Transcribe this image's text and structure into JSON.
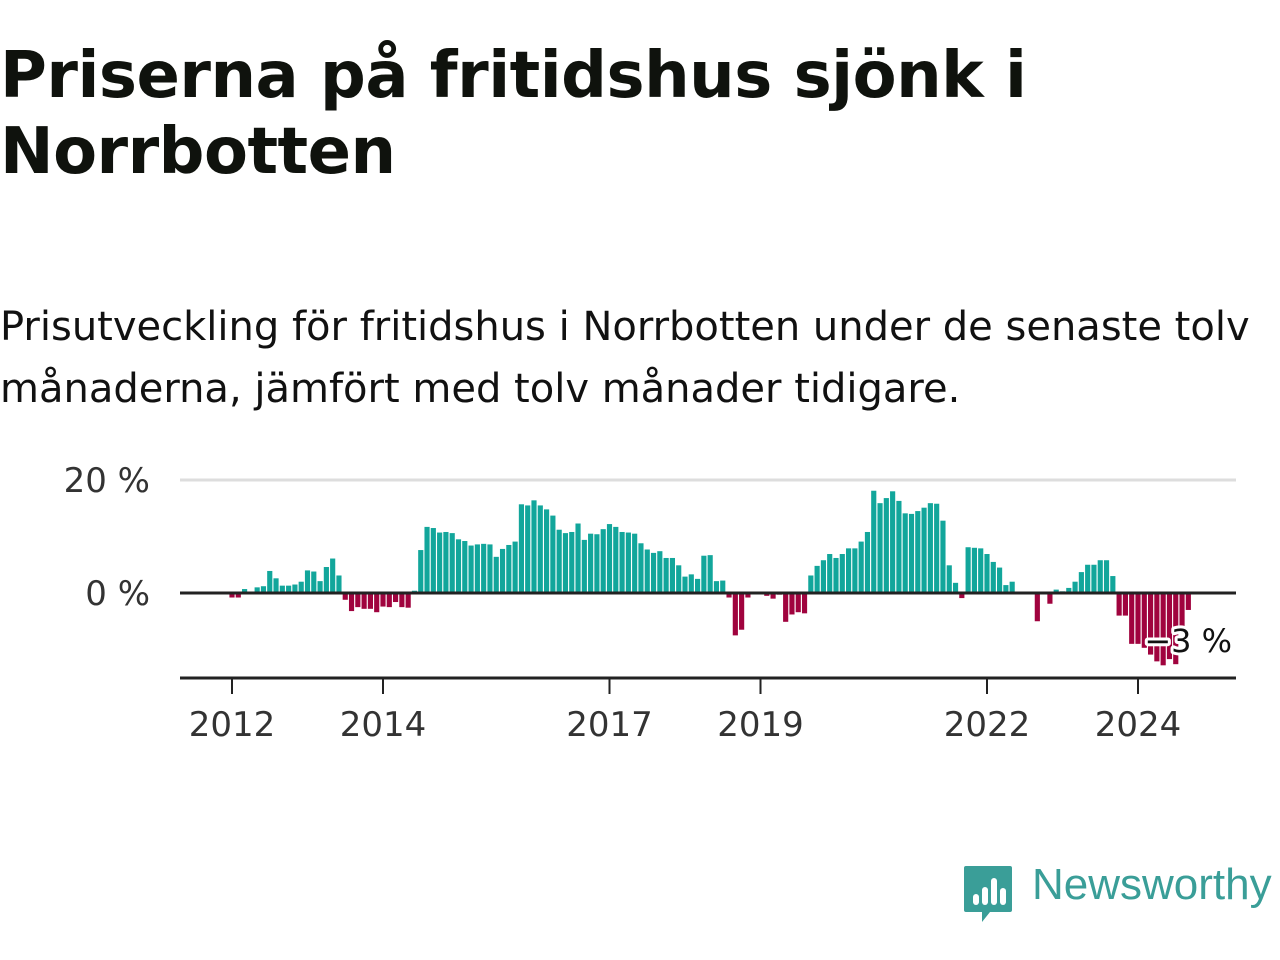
{
  "title": "Priserna på fritidshus sjönk i Norrbotten",
  "subtitle": "Prisutveckling för fritidshus i Norrbotten under de senaste tolv månaderna, jämfört med tolv månader tidigare.",
  "brand": {
    "name": "Newsworthy",
    "icon": "bar-chart-logo-icon",
    "color": "#3a9e98"
  },
  "colors": {
    "positive": "#12a69b",
    "negative": "#a0033e",
    "axis": "#222222",
    "grid": "#dddddd"
  },
  "chart_data": {
    "type": "bar",
    "title": "",
    "xlabel": "",
    "ylabel": "",
    "ylim": [
      -15,
      22
    ],
    "yticks": [
      0,
      20
    ],
    "ytick_labels": [
      "0 %",
      "20 %"
    ],
    "x_start": {
      "year": 2012,
      "month": 1
    },
    "x_end": {
      "year": 2025,
      "month": 12
    },
    "xticks": [
      2012,
      2014,
      2017,
      2019,
      2022,
      2024
    ],
    "last_value_label": "−3 %",
    "values": [
      -0.8,
      -0.8,
      0.7,
      0,
      1,
      1.2,
      3.9,
      2.6,
      1.3,
      1.3,
      1.5,
      2,
      4,
      3.8,
      2.1,
      4.6,
      6.1,
      3.1,
      -1.2,
      -3.2,
      -2.5,
      -2.8,
      -2.8,
      -3.4,
      -2.4,
      -2.5,
      -1.6,
      -2.5,
      -2.6,
      0.4,
      7.6,
      11.7,
      11.5,
      10.7,
      10.8,
      10.6,
      9.5,
      9.2,
      8.4,
      8.6,
      8.7,
      8.6,
      6.4,
      7.8,
      8.5,
      9.1,
      15.7,
      15.5,
      16.4,
      15.5,
      14.8,
      13.7,
      11.2,
      10.6,
      10.8,
      12.3,
      9.4,
      10.5,
      10.4,
      11.3,
      12.2,
      11.7,
      10.8,
      10.7,
      10.5,
      8.8,
      7.7,
      7.1,
      7.4,
      6.2,
      6.2,
      4.9,
      2.9,
      3.3,
      2.5,
      6.6,
      6.7,
      2.1,
      2.2,
      -0.8,
      -7.5,
      -6.5,
      -0.8,
      0,
      0,
      -0.5,
      -1,
      -0.3,
      -5.1,
      -3.8,
      -3.4,
      -3.6,
      3.1,
      4.8,
      5.8,
      6.9,
      6.2,
      6.9,
      7.9,
      7.9,
      9.1,
      10.8,
      18.1,
      15.9,
      16.8,
      18,
      16.3,
      14.1,
      14,
      14.5,
      15.1,
      15.9,
      15.8,
      12.8,
      4.9,
      1.8,
      -0.9,
      8.1,
      8,
      7.9,
      6.9,
      5.5,
      4.5,
      1.4,
      2,
      0,
      0,
      0,
      -5,
      0,
      -1.9,
      0.6,
      0.3,
      0.9,
      2,
      3.7,
      5,
      5,
      5.8,
      5.8,
      3,
      -4,
      -4,
      -9,
      -9,
      -9.7,
      -10.9,
      -12.1,
      -12.8,
      -11.7,
      -12.6,
      -6,
      -3
    ]
  }
}
